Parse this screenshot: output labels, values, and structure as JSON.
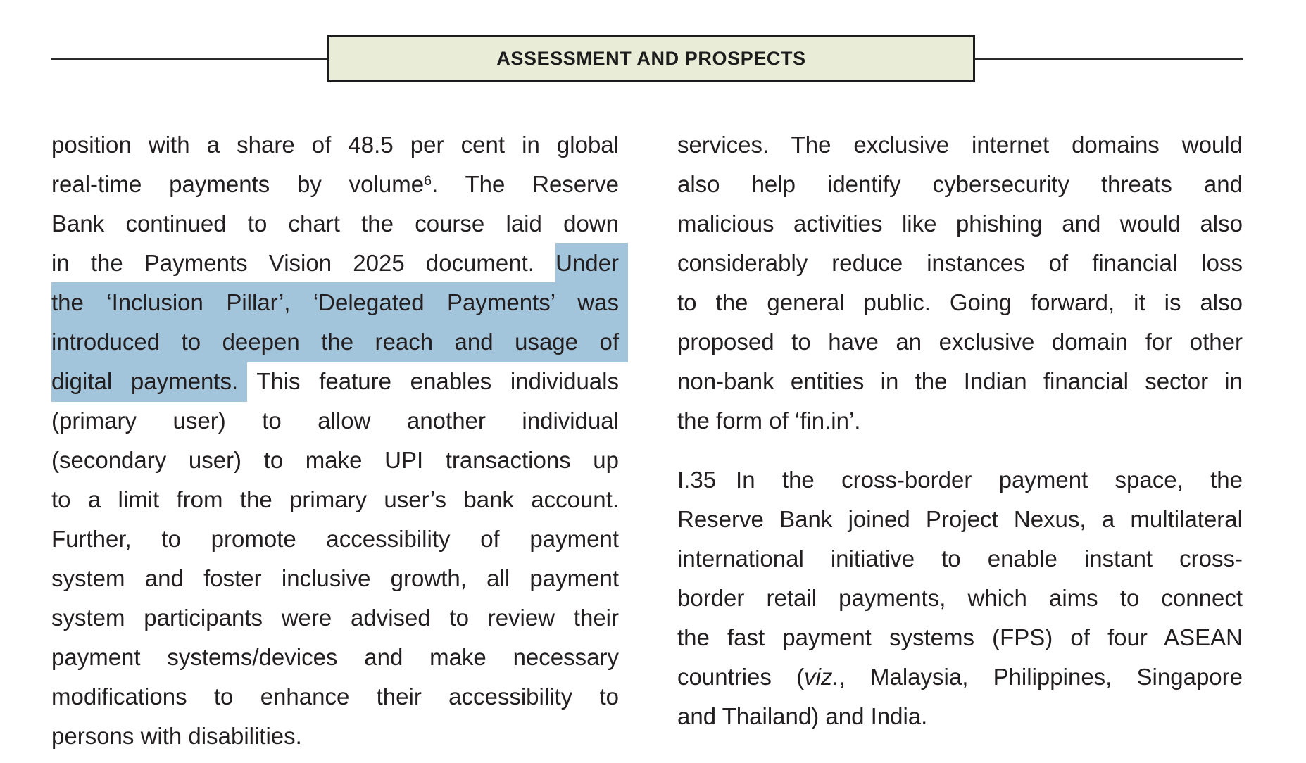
{
  "header": {
    "title": "ASSESSMENT AND PROSPECTS"
  },
  "colors": {
    "ink": "#231f20",
    "highlight": "#a3c5db",
    "header_box_fill": "#e9edd8",
    "rule": "#2a2a2a"
  },
  "columns": {
    "left": {
      "paragraphs": [
        {
          "lines": [
            {
              "runs": [
                {
                  "t": "position with a share of 48.5 per cent in global"
                }
              ]
            },
            {
              "runs": [
                {
                  "t": "real-time payments by volume"
                },
                {
                  "t": "6",
                  "sup": true
                },
                {
                  "t": ". The Reserve"
                }
              ]
            },
            {
              "runs": [
                {
                  "t": "Bank continued to chart the course laid down"
                }
              ]
            },
            {
              "runs": [
                {
                  "t": "in the Payments Vision 2025 document. "
                },
                {
                  "t": "Under",
                  "hl": true
                }
              ]
            },
            {
              "runs": [
                {
                  "t": "the ‘Inclusion Pillar’, ‘Delegated Payments’ was",
                  "hl": true
                }
              ]
            },
            {
              "runs": [
                {
                  "t": "introduced to deepen the reach and usage of",
                  "hl": true
                }
              ]
            },
            {
              "runs": [
                {
                  "t": "digital payments.",
                  "hl": true
                },
                {
                  "t": " This feature enables individuals"
                }
              ]
            },
            {
              "runs": [
                {
                  "t": "(primary user) to allow another individual"
                }
              ]
            },
            {
              "runs": [
                {
                  "t": "(secondary user) to make UPI transactions up"
                }
              ]
            },
            {
              "runs": [
                {
                  "t": "to a limit from the primary user’s bank account."
                }
              ]
            },
            {
              "runs": [
                {
                  "t": "Further, to promote accessibility of payment"
                }
              ]
            },
            {
              "runs": [
                {
                  "t": "system and foster inclusive growth, all payment"
                }
              ]
            },
            {
              "runs": [
                {
                  "t": "system participants were advised to review their"
                }
              ]
            },
            {
              "runs": [
                {
                  "t": "payment systems/devices and make necessary"
                }
              ]
            },
            {
              "runs": [
                {
                  "t": "modifications to enhance their accessibility to"
                }
              ]
            },
            {
              "runs": [
                {
                  "t": "persons with disabilities."
                }
              ],
              "last": true
            }
          ]
        }
      ]
    },
    "right": {
      "paragraphs": [
        {
          "lines": [
            {
              "runs": [
                {
                  "t": "services. The exclusive internet domains would"
                }
              ]
            },
            {
              "runs": [
                {
                  "t": "also help identify cybersecurity threats and"
                }
              ]
            },
            {
              "runs": [
                {
                  "t": "malicious activities like phishing and would also"
                }
              ]
            },
            {
              "runs": [
                {
                  "t": "considerably reduce instances of financial loss"
                }
              ]
            },
            {
              "runs": [
                {
                  "t": "to the general public. Going forward, it is also"
                }
              ]
            },
            {
              "runs": [
                {
                  "t": "proposed to have an exclusive domain for other"
                }
              ]
            },
            {
              "runs": [
                {
                  "t": "non-bank entities in the Indian financial sector in"
                }
              ]
            },
            {
              "runs": [
                {
                  "t": "the form of ‘fin.in’."
                }
              ],
              "last": true
            }
          ]
        },
        {
          "lines": [
            {
              "runs": [
                {
                  "t": "I.35",
                  "gap": true
                },
                {
                  "t": "In the cross-border payment space, the"
                }
              ]
            },
            {
              "runs": [
                {
                  "t": "Reserve Bank joined Project Nexus, a multilateral"
                }
              ]
            },
            {
              "runs": [
                {
                  "t": "international initiative to enable instant cross-"
                }
              ]
            },
            {
              "runs": [
                {
                  "t": "border retail payments, which aims to connect"
                }
              ]
            },
            {
              "runs": [
                {
                  "t": "the fast payment systems (FPS) of four ASEAN"
                }
              ]
            },
            {
              "runs": [
                {
                  "t": "countries ("
                },
                {
                  "t": "viz.",
                  "it": true
                },
                {
                  "t": ", Malaysia, Philippines, Singapore"
                }
              ]
            },
            {
              "runs": [
                {
                  "t": "and Thailand) and India."
                }
              ],
              "last": true
            }
          ]
        }
      ]
    }
  }
}
